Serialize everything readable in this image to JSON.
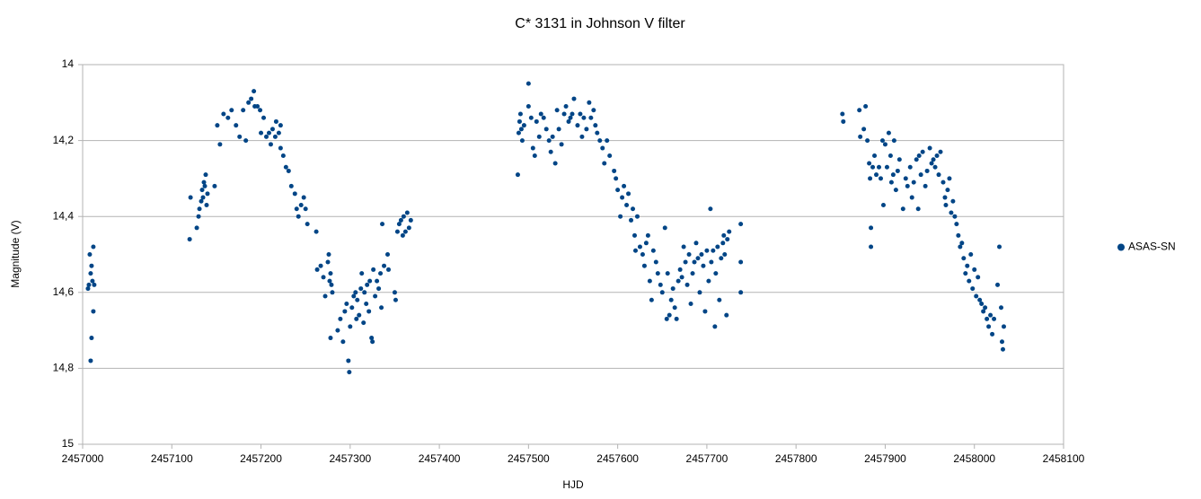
{
  "chart_data": {
    "type": "scatter",
    "title": "C* 3131 in Johnson V filter",
    "x_label": "HJD",
    "y_label": "Magnitude (V)",
    "xlim": [
      2457000,
      2458100
    ],
    "xticks": [
      2457000,
      2457100,
      2457200,
      2457300,
      2457400,
      2457500,
      2457600,
      2457700,
      2457800,
      2457900,
      2458000,
      2458100
    ],
    "ylim": [
      14,
      15
    ],
    "y_inverted": true,
    "yticks": [
      14,
      {
        "value": 14.2,
        "label": "14,2"
      },
      {
        "value": 14.4,
        "label": "14,4"
      },
      {
        "value": 14.6,
        "label": "14,6"
      },
      {
        "value": 14.8,
        "label": "14,8"
      },
      15
    ],
    "grid": true,
    "legend": "right",
    "x": [
      2457006,
      2457007,
      2457008,
      2457009,
      2457010,
      2457011,
      2457012,
      2457012,
      2457010,
      2457009,
      2457013,
      2457120,
      2457121,
      2457128,
      2457130,
      2457131,
      2457133,
      2457134,
      2457135,
      2457136,
      2457137,
      2457138,
      2457139,
      2457140,
      2457148,
      2457151,
      2457154,
      2457158,
      2457163,
      2457167,
      2457172,
      2457176,
      2457180,
      2457183,
      2457186,
      2457189,
      2457192,
      2457193,
      2457196,
      2457199,
      2457200,
      2457203,
      2457206,
      2457209,
      2457211,
      2457213,
      2457216,
      2457217,
      2457220,
      2457222,
      2457222,
      2457225,
      2457228,
      2457231,
      2457234,
      2457238,
      2457240,
      2457242,
      2457245,
      2457248,
      2457250,
      2457252,
      2457262,
      2457263,
      2457267,
      2457270,
      2457272,
      2457275,
      2457276,
      2457277,
      2457278,
      2457279,
      2457280,
      2457278,
      2457286,
      2457289,
      2457292,
      2457294,
      2457296,
      2457298,
      2457299,
      2457300,
      2457302,
      2457304,
      2457306,
      2457307,
      2457308,
      2457310,
      2457312,
      2457313,
      2457315,
      2457316,
      2457318,
      2457319,
      2457321,
      2457322,
      2457324,
      2457325,
      2457326,
      2457328,
      2457330,
      2457332,
      2457334,
      2457335,
      2457336,
      2457338,
      2457342,
      2457343,
      2457350,
      2457351,
      2457353,
      2457355,
      2457357,
      2457359,
      2457360,
      2457362,
      2457364,
      2457366,
      2457368,
      2457488,
      2457489,
      2457490,
      2457491,
      2457492,
      2457493,
      2457495,
      2457500,
      2457500,
      2457503,
      2457505,
      2457507,
      2457509,
      2457512,
      2457514,
      2457517,
      2457520,
      2457523,
      2457525,
      2457527,
      2457530,
      2457532,
      2457534,
      2457537,
      2457540,
      2457542,
      2457545,
      2457547,
      2457549,
      2457551,
      2457555,
      2457558,
      2457560,
      2457562,
      2457565,
      2457568,
      2457570,
      2457573,
      2457575,
      2457577,
      2457580,
      2457583,
      2457585,
      2457588,
      2457591,
      2457596,
      2457598,
      2457600,
      2457603,
      2457605,
      2457607,
      2457610,
      2457612,
      2457615,
      2457617,
      2457619,
      2457620,
      2457622,
      2457625,
      2457628,
      2457630,
      2457632,
      2457634,
      2457636,
      2457638,
      2457640,
      2457643,
      2457645,
      2457648,
      2457650,
      2457653,
      2457655,
      2457656,
      2457658,
      2457660,
      2457662,
      2457664,
      2457666,
      2457668,
      2457670,
      2457672,
      2457674,
      2457676,
      2457678,
      2457680,
      2457682,
      2457684,
      2457686,
      2457688,
      2457690,
      2457692,
      2457694,
      2457696,
      2457698,
      2457700,
      2457702,
      2457704,
      2457705,
      2457707,
      2457709,
      2457710,
      2457712,
      2457714,
      2457716,
      2457718,
      2457719,
      2457720,
      2457722,
      2457723,
      2457725,
      2457738,
      2457738,
      2457738,
      2457852,
      2457853,
      2457871,
      2457872,
      2457876,
      2457878,
      2457880,
      2457882,
      2457883,
      2457884,
      2457884,
      2457886,
      2457888,
      2457890,
      2457893,
      2457895,
      2457897,
      2457898,
      2457900,
      2457902,
      2457904,
      2457906,
      2457907,
      2457909,
      2457910,
      2457912,
      2457914,
      2457916,
      2457920,
      2457923,
      2457925,
      2457928,
      2457930,
      2457932,
      2457935,
      2457937,
      2457938,
      2457940,
      2457942,
      2457945,
      2457947,
      2457950,
      2457952,
      2457954,
      2457956,
      2457958,
      2457960,
      2457962,
      2457965,
      2457967,
      2457968,
      2457970,
      2457972,
      2457974,
      2457976,
      2457978,
      2457980,
      2457982,
      2457984,
      2457986,
      2457988,
      2457990,
      2457992,
      2457994,
      2457996,
      2457998,
      2458000,
      2458002,
      2458004,
      2458006,
      2458008,
      2458010,
      2458012,
      2458014,
      2458016,
      2458018,
      2458020,
      2458022,
      2458026,
      2458028,
      2458030,
      2458031,
      2458032,
      2458033
    ],
    "series": [
      {
        "name": "ASAS-SN",
        "color": "#004586",
        "values": [
          14.59,
          14.58,
          14.5,
          14.55,
          14.53,
          14.57,
          14.48,
          14.65,
          14.72,
          14.78,
          14.58,
          14.46,
          14.35,
          14.43,
          14.4,
          14.38,
          14.36,
          14.33,
          14.35,
          14.31,
          14.32,
          14.29,
          14.37,
          14.34,
          14.32,
          14.16,
          14.21,
          14.13,
          14.14,
          14.12,
          14.16,
          14.19,
          14.12,
          14.2,
          14.1,
          14.09,
          14.07,
          14.11,
          14.11,
          14.12,
          14.18,
          14.14,
          14.19,
          14.18,
          14.21,
          14.17,
          14.19,
          14.15,
          14.18,
          14.16,
          14.22,
          14.24,
          14.27,
          14.28,
          14.32,
          14.34,
          14.38,
          14.4,
          14.37,
          14.35,
          14.38,
          14.42,
          14.44,
          14.54,
          14.53,
          14.56,
          14.61,
          14.52,
          14.5,
          14.57,
          14.55,
          14.58,
          14.6,
          14.72,
          14.7,
          14.67,
          14.73,
          14.65,
          14.63,
          14.78,
          14.81,
          14.69,
          14.64,
          14.61,
          14.6,
          14.67,
          14.62,
          14.66,
          14.59,
          14.55,
          14.68,
          14.6,
          14.63,
          14.58,
          14.65,
          14.57,
          14.72,
          14.73,
          14.54,
          14.61,
          14.57,
          14.59,
          14.55,
          14.64,
          14.42,
          14.53,
          14.5,
          14.54,
          14.6,
          14.62,
          14.44,
          14.42,
          14.41,
          14.45,
          14.4,
          14.44,
          14.39,
          14.43,
          14.41,
          14.29,
          14.18,
          14.15,
          14.13,
          14.17,
          14.2,
          14.16,
          14.11,
          14.05,
          14.14,
          14.22,
          14.24,
          14.15,
          14.19,
          14.13,
          14.14,
          14.17,
          14.2,
          14.23,
          14.19,
          14.26,
          14.12,
          14.17,
          14.21,
          14.13,
          14.11,
          14.15,
          14.14,
          14.13,
          14.09,
          14.16,
          14.13,
          14.19,
          14.14,
          14.17,
          14.1,
          14.14,
          14.12,
          14.16,
          14.18,
          14.2,
          14.22,
          14.26,
          14.2,
          14.24,
          14.28,
          14.3,
          14.33,
          14.4,
          14.35,
          14.32,
          14.37,
          14.34,
          14.41,
          14.38,
          14.45,
          14.49,
          14.4,
          14.48,
          14.5,
          14.53,
          14.47,
          14.45,
          14.57,
          14.62,
          14.49,
          14.52,
          14.55,
          14.58,
          14.6,
          14.43,
          14.67,
          14.55,
          14.66,
          14.62,
          14.59,
          14.64,
          14.67,
          14.57,
          14.54,
          14.56,
          14.48,
          14.52,
          14.58,
          14.5,
          14.63,
          14.55,
          14.52,
          14.47,
          14.51,
          14.6,
          14.5,
          14.53,
          14.65,
          14.49,
          14.57,
          14.38,
          14.52,
          14.49,
          14.69,
          14.55,
          14.48,
          14.62,
          14.51,
          14.47,
          14.45,
          14.5,
          14.66,
          14.46,
          14.44,
          14.42,
          14.52,
          14.6,
          14.13,
          14.15,
          14.12,
          14.19,
          14.17,
          14.11,
          14.2,
          14.26,
          14.3,
          14.48,
          14.43,
          14.27,
          14.24,
          14.29,
          14.27,
          14.3,
          14.2,
          14.37,
          14.21,
          14.27,
          14.18,
          14.24,
          14.31,
          14.29,
          14.2,
          14.33,
          14.28,
          14.25,
          14.38,
          14.3,
          14.32,
          14.27,
          14.35,
          14.31,
          14.25,
          14.38,
          14.24,
          14.29,
          14.23,
          14.32,
          14.28,
          14.22,
          14.26,
          14.25,
          14.27,
          14.24,
          14.29,
          14.23,
          14.31,
          14.35,
          14.37,
          14.33,
          14.3,
          14.39,
          14.36,
          14.4,
          14.42,
          14.45,
          14.48,
          14.47,
          14.51,
          14.55,
          14.53,
          14.57,
          14.5,
          14.59,
          14.54,
          14.61,
          14.56,
          14.62,
          14.63,
          14.65,
          14.64,
          14.67,
          14.69,
          14.66,
          14.71,
          14.67,
          14.58,
          14.48,
          14.64,
          14.73,
          14.75,
          14.69
        ]
      }
    ]
  }
}
